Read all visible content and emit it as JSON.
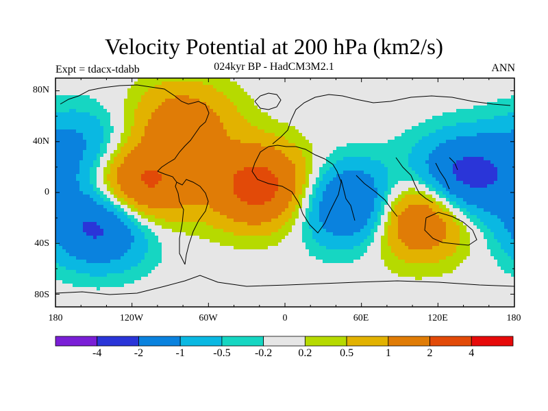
{
  "title": "Velocity Potential at 200 hPa (km2/s)",
  "subtitle": "024kyr BP - HadCM3M2.1",
  "left_label": "Expt = tdacx-tdabb",
  "right_label": "ANN",
  "lat_labels": [
    "80N",
    "40N",
    "0",
    "40S",
    "80S"
  ],
  "lon_labels": [
    "180",
    "120W",
    "60W",
    "0",
    "60E",
    "120E",
    "180"
  ],
  "colorbar": {
    "colors": [
      "#7a1fd6",
      "#2a35d8",
      "#0a82de",
      "#0ab8e2",
      "#16d6c2",
      "#e6e6e6",
      "#b6da00",
      "#e2b200",
      "#e07c06",
      "#e24a08",
      "#e60a0a"
    ],
    "labels": [
      "-4",
      "-2",
      "-1",
      "-0.5",
      "-0.2",
      "0.2",
      "0.5",
      "1",
      "2",
      "4"
    ]
  },
  "chart_data": {
    "type": "heatmap",
    "title": "Velocity Potential at 200 hPa (km2/s)",
    "subtitle": "024kyr BP - HadCM3M2.1",
    "experiment": "Expt = tdacx-tdabb",
    "season": "ANN",
    "lon_range": [
      -180,
      180
    ],
    "lat_range": [
      -90,
      90
    ],
    "contour_levels": [
      -4,
      -2,
      -1,
      -0.5,
      -0.2,
      0.2,
      0.5,
      1,
      2,
      4
    ],
    "features": [
      {
        "lon": -115,
        "lat": 5,
        "value": 2.5
      },
      {
        "lon": -20,
        "lat": 5,
        "value": 2.5
      },
      {
        "lon": -80,
        "lat": 55,
        "value": 1.5
      },
      {
        "lon": 55,
        "lat": -10,
        "value": -2.5
      },
      {
        "lon": 140,
        "lat": 12,
        "value": -2.5
      },
      {
        "lon": -145,
        "lat": -25,
        "value": -2.5
      },
      {
        "lon": 102,
        "lat": -18,
        "value": 2.5
      },
      {
        "lon": -160,
        "lat": 35,
        "value": -1.2
      }
    ]
  }
}
